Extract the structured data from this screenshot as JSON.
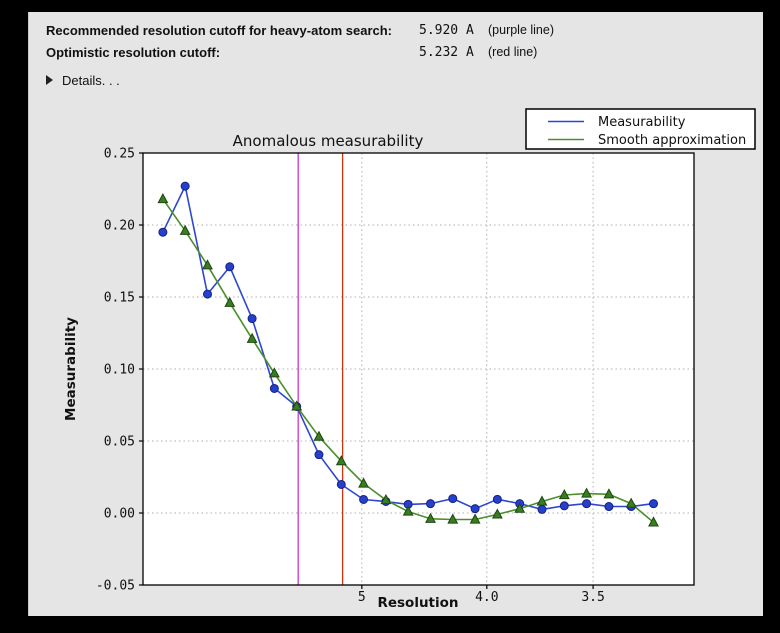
{
  "window": {
    "backdrop_color": "#000000",
    "panel_color": "#e5e5e5"
  },
  "header": {
    "rows": [
      {
        "label": "Recommended resolution cutoff for heavy-atom search:",
        "value": "5.920 A",
        "note": "(purple line)"
      },
      {
        "label": "Optimistic resolution cutoff:",
        "value": "5.232 A",
        "note": "(red line)"
      }
    ],
    "details_label": "Details. . ."
  },
  "chart_data": {
    "type": "line",
    "title": "Anomalous measurability",
    "xlabel": "Resolution",
    "ylabel": "Measurability",
    "x_axis": {
      "scale": "1/d^2 (resolution in Angstrom decreasing to the right)",
      "range": [
        0.0006,
        0.0998
      ],
      "ticks": [
        {
          "value": 0.04,
          "label": "5"
        },
        {
          "value": 0.0625,
          "label": "4.0"
        },
        {
          "value": 0.081633,
          "label": "3.5"
        }
      ]
    },
    "y_axis": {
      "range": [
        -0.05,
        0.25
      ],
      "ticks": [
        {
          "value": 0.25,
          "label": "0.25",
          "grid": false
        },
        {
          "value": 0.2,
          "label": "0.20",
          "grid": true
        },
        {
          "value": 0.15,
          "label": "0.15",
          "grid": true
        },
        {
          "value": 0.1,
          "label": "0.10",
          "grid": true
        },
        {
          "value": 0.05,
          "label": "0.05",
          "grid": true
        },
        {
          "value": 0.0,
          "label": "0.00",
          "grid": true
        },
        {
          "value": -0.05,
          "label": "-0.05",
          "grid": false
        }
      ]
    },
    "grid_style": {
      "color": "#b0b0b0",
      "dash": "dotted"
    },
    "legend": {
      "position": "top-right-outside"
    },
    "series": [
      {
        "name": "Measurability",
        "color": "#2e46d2",
        "marker": "circle",
        "marker_fill": "#2440cc",
        "marker_edge": "#16217e",
        "x": [
          0.00418,
          0.00819,
          0.01221,
          0.01622,
          0.02024,
          0.02425,
          0.02827,
          0.03228,
          0.0363,
          0.04031,
          0.04433,
          0.04834,
          0.05236,
          0.05637,
          0.06039,
          0.0644,
          0.06842,
          0.07243,
          0.07645,
          0.08046,
          0.08448,
          0.08849,
          0.09251
        ],
        "y": [
          0.195,
          0.227,
          0.152,
          0.171,
          0.135,
          0.0865,
          0.074,
          0.0405,
          0.0198,
          0.0094,
          0.008,
          0.006,
          0.0065,
          0.01,
          0.003,
          0.0095,
          0.0065,
          0.0025,
          0.005,
          0.0065,
          0.0045,
          0.0045,
          0.0065
        ]
      },
      {
        "name": "Smooth approximation",
        "color": "#4b8f2a",
        "marker": "triangle",
        "marker_fill": "#3a7d20",
        "marker_edge": "#1c4710",
        "x": [
          0.00418,
          0.00819,
          0.01221,
          0.01622,
          0.02024,
          0.02425,
          0.02827,
          0.03228,
          0.0363,
          0.04031,
          0.04433,
          0.04834,
          0.05236,
          0.05637,
          0.06039,
          0.0644,
          0.06842,
          0.07243,
          0.07645,
          0.08046,
          0.08448,
          0.08849,
          0.09251
        ],
        "y": [
          0.218,
          0.196,
          0.172,
          0.146,
          0.121,
          0.097,
          0.074,
          0.053,
          0.036,
          0.0205,
          0.009,
          0.001,
          -0.004,
          -0.0045,
          -0.0045,
          -0.001,
          0.003,
          0.008,
          0.0125,
          0.0135,
          0.013,
          0.0065,
          -0.0065
        ]
      }
    ],
    "vlines": [
      {
        "name": "purple line",
        "x": 0.028538,
        "color": "#cc33cc",
        "resolution_label": "5.920 A"
      },
      {
        "name": "red line",
        "x": 0.036537,
        "color": "#cf3412",
        "resolution_label": "5.232 A"
      }
    ]
  }
}
